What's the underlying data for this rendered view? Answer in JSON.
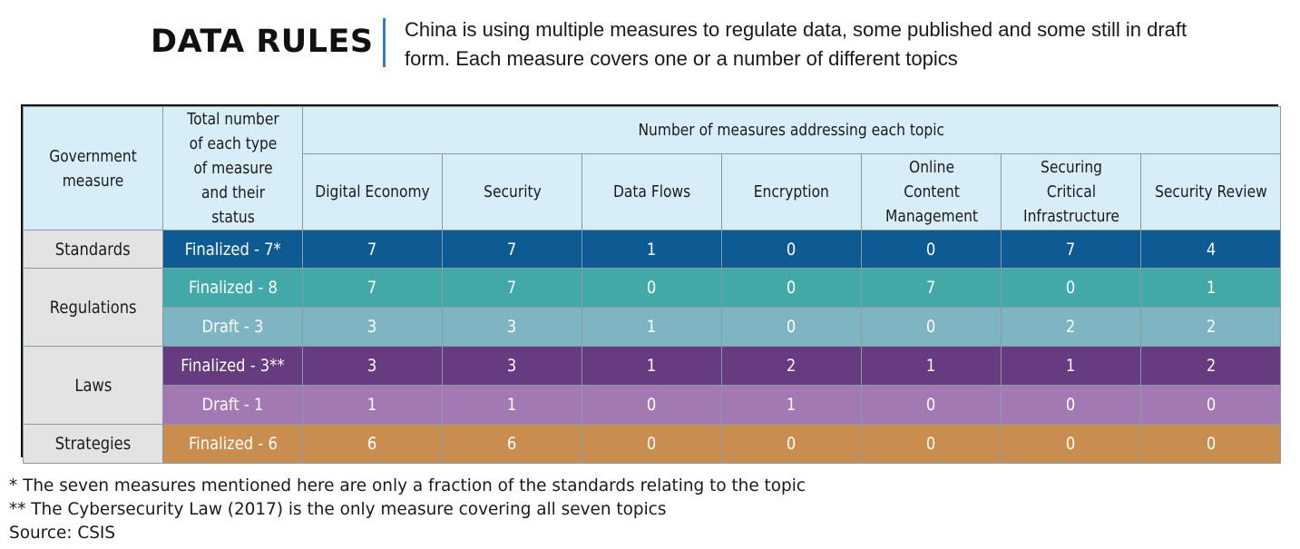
{
  "header": {
    "title": "DATA RULES",
    "subtitle": "China is using multiple measures to regulate data, some published and some still in draft form. Each measure covers one or a number of different topics"
  },
  "chart_data": {
    "type": "table",
    "column_headers": {
      "measure": "Government measure",
      "status": "Total number of each type of measure and their status",
      "group": "Number of measures addressing each topic",
      "topics": [
        "Digital Economy",
        "Security",
        "Data Flows",
        "Encryption",
        "Online Content Management",
        "Securing Critical Infrastructure",
        "Security Review"
      ]
    },
    "rows": [
      {
        "measure": "Standards",
        "status": "Finalized - 7*",
        "values": [
          7,
          7,
          1,
          0,
          0,
          7,
          4
        ]
      },
      {
        "measure": "Regulations",
        "status": "Finalized - 8",
        "values": [
          7,
          7,
          0,
          0,
          7,
          0,
          1
        ]
      },
      {
        "measure": "",
        "status": "Draft - 3",
        "values": [
          3,
          3,
          1,
          0,
          0,
          2,
          2
        ]
      },
      {
        "measure": "Laws",
        "status": "Finalized - 3**",
        "values": [
          3,
          3,
          1,
          2,
          1,
          1,
          2
        ]
      },
      {
        "measure": "",
        "status": "Draft - 1",
        "values": [
          1,
          1,
          0,
          1,
          0,
          0,
          0
        ]
      },
      {
        "measure": "Strategies",
        "status": "Finalized - 6",
        "values": [
          6,
          6,
          0,
          0,
          0,
          0,
          0
        ]
      }
    ],
    "row_colors": [
      "#0e5a93",
      "#42a8a8",
      "#7fb4c3",
      "#663b80",
      "#a379b4",
      "#c98d4f"
    ]
  },
  "footnotes": {
    "note1": "* The seven measures mentioned here are only a fraction of the standards relating to the topic",
    "note2": "** The Cybersecurity Law (2017) is the only measure covering all seven topics",
    "source": "Source: CSIS"
  },
  "colors": {
    "header_bg": "#d7eef8",
    "measure_bg": "#e3e3e3",
    "title_rule": "#2f7fc1"
  }
}
